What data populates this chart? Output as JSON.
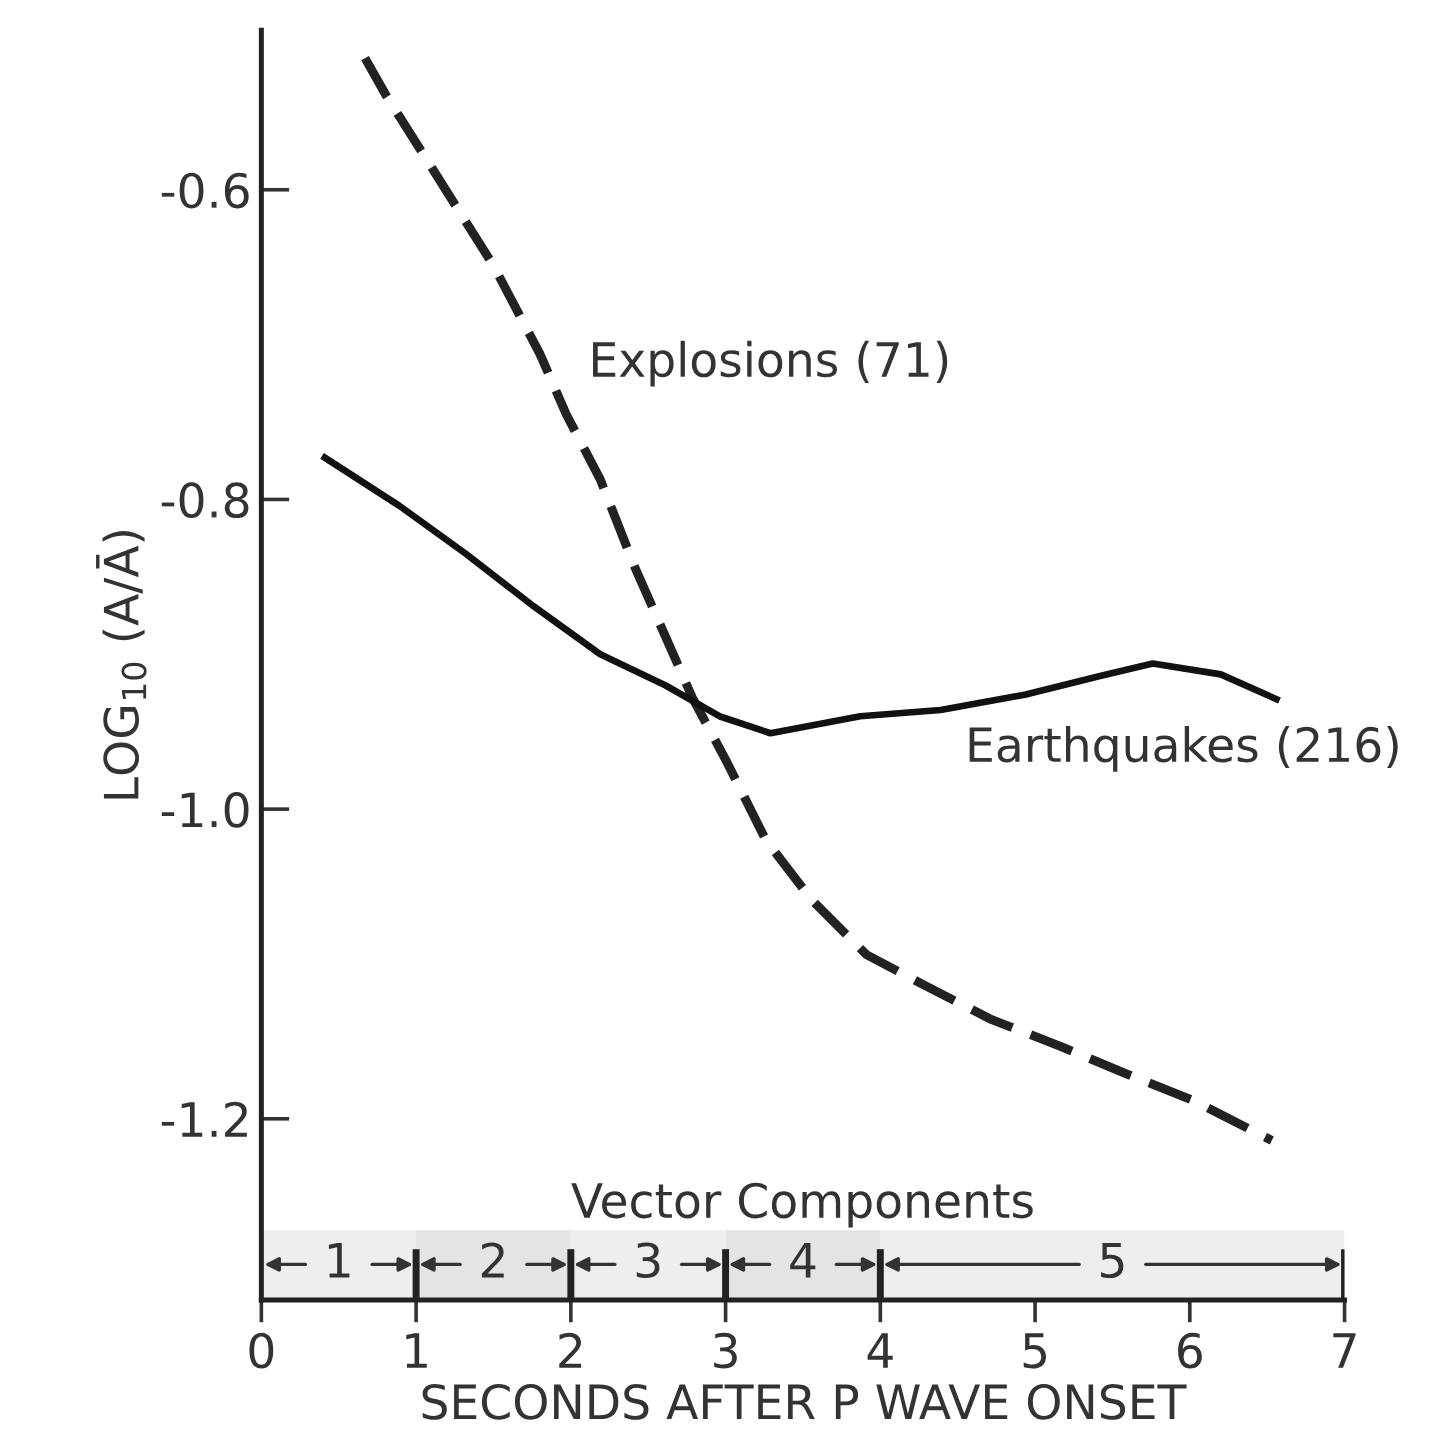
{
  "chart_data": {
    "type": "line",
    "xlabel": "SECONDS AFTER P WAVE ONSET",
    "ylabel": "LOG$_{10}$ (A/Ā)",
    "xlim": [
      0,
      7
    ],
    "xticks": [
      0,
      1,
      2,
      3,
      4,
      5,
      6,
      7
    ],
    "ylim": [
      -1.317,
      -0.497
    ],
    "yticks": [
      -0.6,
      -0.8,
      {
        "value": -1.0,
        "label": "-1.0"
      },
      -1.2
    ],
    "grid": false,
    "legend": false,
    "series": [
      {
        "name": "Explosions (71)",
        "color": "#222222",
        "line_style": "dashed",
        "x": [
          0.67,
          0.8,
          1.5,
          1.8,
          1.97,
          2.19,
          2.41,
          2.79,
          3.0,
          3.26,
          3.56,
          3.91,
          4.29,
          4.72,
          5.16,
          5.59,
          6.02,
          6.53
        ],
        "values": [
          -0.515,
          -0.538,
          -0.649,
          -0.706,
          -0.745,
          -0.787,
          -0.843,
          -0.929,
          -0.968,
          -1.02,
          -1.059,
          -1.094,
          -1.114,
          -1.136,
          -1.153,
          -1.171,
          -1.188,
          -1.214
        ]
      },
      {
        "name": "Earthquakes (216)",
        "color": "#111111",
        "line_style": "solid",
        "x": [
          0.41,
          0.89,
          1.32,
          1.76,
          2.19,
          2.61,
          2.96,
          3.29,
          3.87,
          4.39,
          4.94,
          5.42,
          5.76,
          6.2,
          6.56
        ],
        "values": [
          -0.773,
          -0.804,
          -0.835,
          -0.869,
          -0.9,
          -0.92,
          -0.94,
          -0.951,
          -0.94,
          -0.936,
          -0.926,
          -0.914,
          -0.906,
          -0.913,
          -0.929
        ]
      }
    ],
    "bands": [
      {
        "axis": "x",
        "from": 0,
        "to": 1,
        "label": "1",
        "color": "#eeeeee"
      },
      {
        "axis": "x",
        "from": 1,
        "to": 2,
        "label": "2",
        "color": "#e4e4e4"
      },
      {
        "axis": "x",
        "from": 2,
        "to": 3,
        "label": "3",
        "color": "#eeeeee"
      },
      {
        "axis": "x",
        "from": 3,
        "to": 4,
        "label": "4",
        "color": "#e4e4e4"
      },
      {
        "axis": "x",
        "from": 4,
        "to": 7,
        "label": "5",
        "color": "#eeeeee"
      }
    ],
    "annotations": [
      "Vector Components"
    ]
  }
}
